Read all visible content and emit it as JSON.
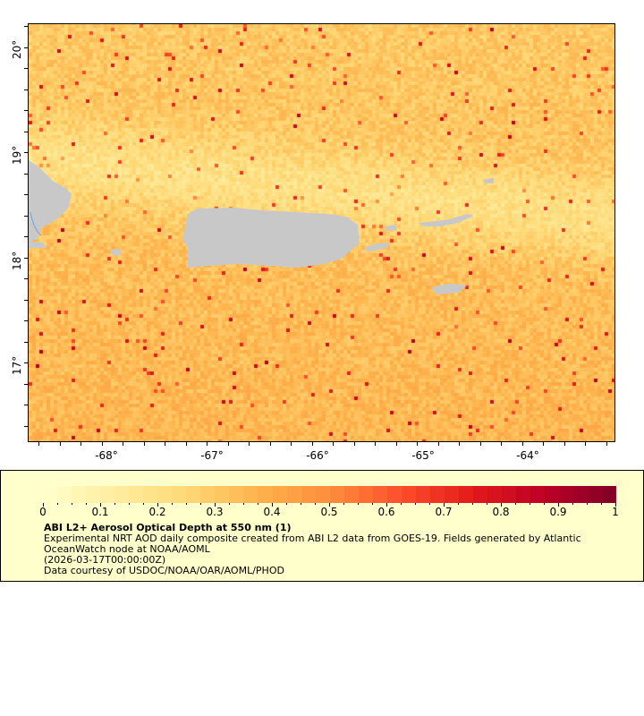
{
  "map": {
    "lon_range": [
      -68.75,
      -63.17
    ],
    "lat_range": [
      16.24,
      20.22
    ],
    "x_ticks": [
      "-68°",
      "-67°",
      "-66°",
      "-65°",
      "-64°"
    ],
    "y_ticks": [
      "20°",
      "19°",
      "18°",
      "17°"
    ],
    "land_color": "#c8c8c8",
    "palette": [
      "#ffffcc",
      "#ffeda0",
      "#fed976",
      "#feb24c",
      "#fd8d3c",
      "#fc4e2a",
      "#e31a1c",
      "#bd0026",
      "#800026"
    ]
  },
  "legend": {
    "scale_ticks": [
      "0",
      "0.1",
      "0.2",
      "0.3",
      "0.4",
      "0.5",
      "0.6",
      "0.7",
      "0.8",
      "0.9",
      "1"
    ],
    "scale_range": [
      0,
      1
    ],
    "title": "ABI L2+ Aerosol Optical Depth at 550 nm (1)",
    "line1": "Experimental NRT AOD daily composite created from ABI L2 data from GOES-19. Fields generated by Atlantic",
    "line2": "OceanWatch node at NOAA/AOML",
    "line3": "(2026-03-17T00:00:00Z)",
    "line4": "Data courtesy of USDOC/NOAA/OAR/AOML/PHOD",
    "background": "#ffffcc"
  }
}
